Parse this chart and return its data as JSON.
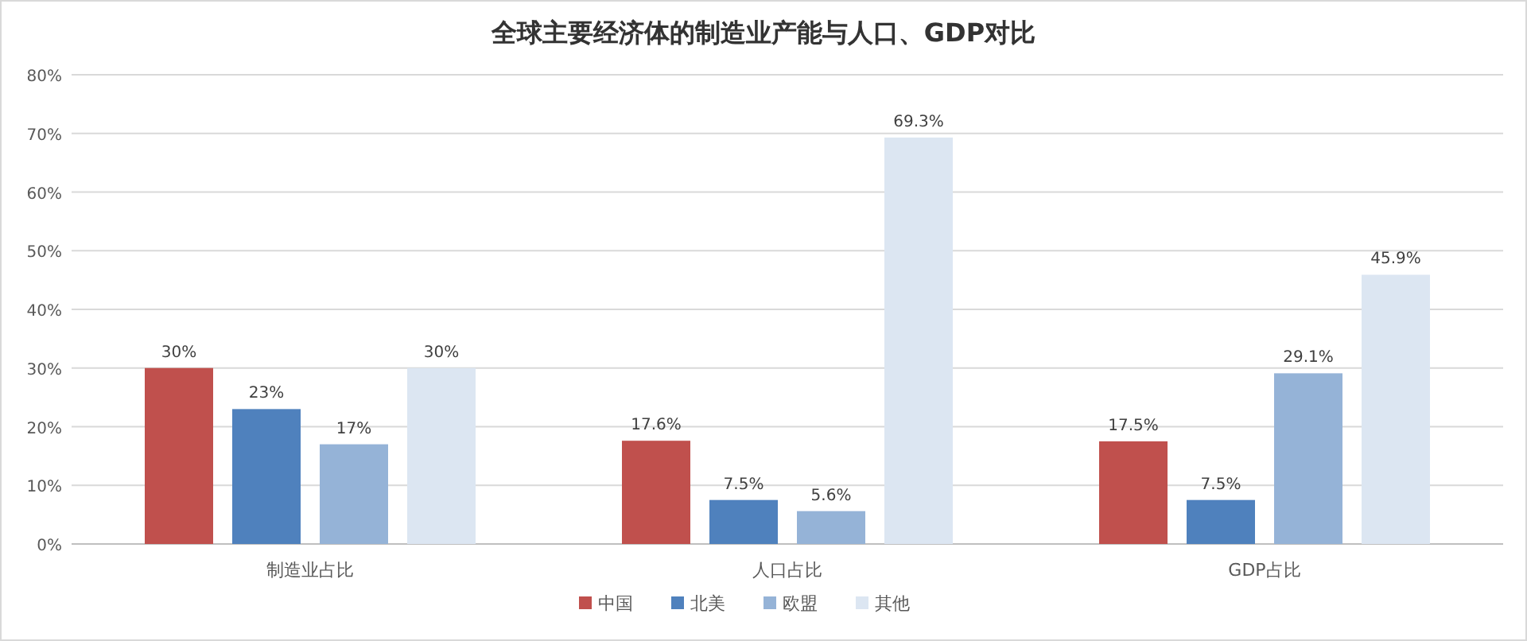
{
  "chart_data": {
    "type": "bar",
    "title": "全球主要经济体的制造业产能与人口、GDP对比",
    "categories": [
      "制造业占比",
      "人口占比",
      "GDP占比"
    ],
    "series": [
      {
        "name": "中国",
        "color": "#c0504d",
        "values": [
          30,
          17.6,
          17.5
        ],
        "value_labels": [
          "30%",
          "17.6%",
          "17.5%"
        ]
      },
      {
        "name": "北美",
        "color": "#4f81bd",
        "values": [
          23,
          7.5,
          7.5
        ],
        "value_labels": [
          "23%",
          "7.5%",
          "7.5%"
        ]
      },
      {
        "name": "欧盟",
        "color": "#95b3d7",
        "values": [
          17,
          5.6,
          29.1
        ],
        "value_labels": [
          "17%",
          "5.6%",
          "29.1%"
        ]
      },
      {
        "name": "其他",
        "color": "#dce6f2",
        "values": [
          30,
          69.3,
          45.9
        ],
        "value_labels": [
          "30%",
          "69.3%",
          "45.9%"
        ]
      }
    ],
    "ylim": [
      0,
      80
    ],
    "yticks": [
      {
        "value": 0,
        "label": "0%"
      },
      {
        "value": 10,
        "label": "10%"
      },
      {
        "value": 20,
        "label": "20%"
      },
      {
        "value": 30,
        "label": "30%"
      },
      {
        "value": 40,
        "label": "40%"
      },
      {
        "value": 50,
        "label": "50%"
      },
      {
        "value": 60,
        "label": "60%"
      },
      {
        "value": 70,
        "label": "70%"
      },
      {
        "value": 80,
        "label": "80%"
      }
    ],
    "grid": "y",
    "legend": "bottom"
  }
}
